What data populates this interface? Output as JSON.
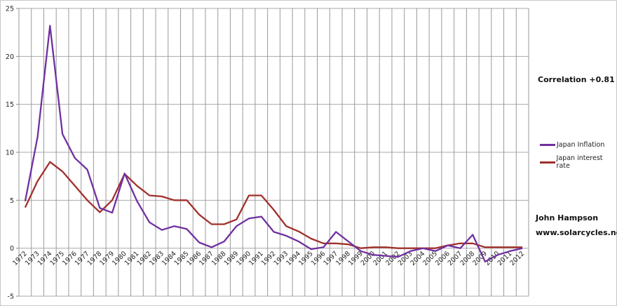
{
  "chart_data": {
    "type": "line",
    "title": "",
    "xlabel": "",
    "ylabel": "",
    "ylim": [
      -5,
      25
    ],
    "yticks": [
      -5,
      0,
      5,
      10,
      15,
      20,
      25
    ],
    "grid": true,
    "legend_position": "right",
    "categories": [
      "1972",
      "1973",
      "1974",
      "1975",
      "1976",
      "1977",
      "1978",
      "1979",
      "1980",
      "1981",
      "1982",
      "1983",
      "1984",
      "1985",
      "1986",
      "1987",
      "1988",
      "1989",
      "1990",
      "1991",
      "1992",
      "1993",
      "1994",
      "1995",
      "1996",
      "1997",
      "1998",
      "1999",
      "2000",
      "2001",
      "2002",
      "2003",
      "2004",
      "2005",
      "2006",
      "2007",
      "2008",
      "2009",
      "2010",
      "2011",
      "2012"
    ],
    "series": [
      {
        "name": "Japan Inflation",
        "color": "#7030A0",
        "values": [
          4.9,
          11.6,
          23.2,
          11.9,
          9.4,
          8.2,
          4.2,
          3.7,
          7.8,
          4.9,
          2.7,
          1.9,
          2.3,
          2.0,
          0.6,
          0.1,
          0.7,
          2.3,
          3.1,
          3.3,
          1.7,
          1.3,
          0.7,
          -0.1,
          0.1,
          1.7,
          0.7,
          -0.3,
          -0.7,
          -0.8,
          -0.9,
          -0.3,
          0.0,
          -0.3,
          0.3,
          0.0,
          1.4,
          -1.4,
          -0.7,
          -0.3,
          0.0
        ]
      },
      {
        "name": "Japan interest rate",
        "color": "#A0302C",
        "values": [
          4.25,
          7.0,
          9.0,
          8.0,
          6.5,
          5.0,
          3.75,
          5.0,
          7.75,
          6.5,
          5.5,
          5.4,
          5.0,
          5.0,
          3.5,
          2.5,
          2.5,
          3.0,
          5.5,
          5.5,
          4.0,
          2.3,
          1.75,
          1.0,
          0.5,
          0.5,
          0.4,
          0.0,
          0.1,
          0.1,
          0.0,
          0.0,
          0.0,
          0.0,
          0.3,
          0.5,
          0.5,
          0.1,
          0.1,
          0.1,
          0.1
        ]
      }
    ],
    "annotations": {
      "correlation": "Correlation +0.81",
      "author": "John Hampson",
      "website": "www.solarcycles.net"
    }
  }
}
